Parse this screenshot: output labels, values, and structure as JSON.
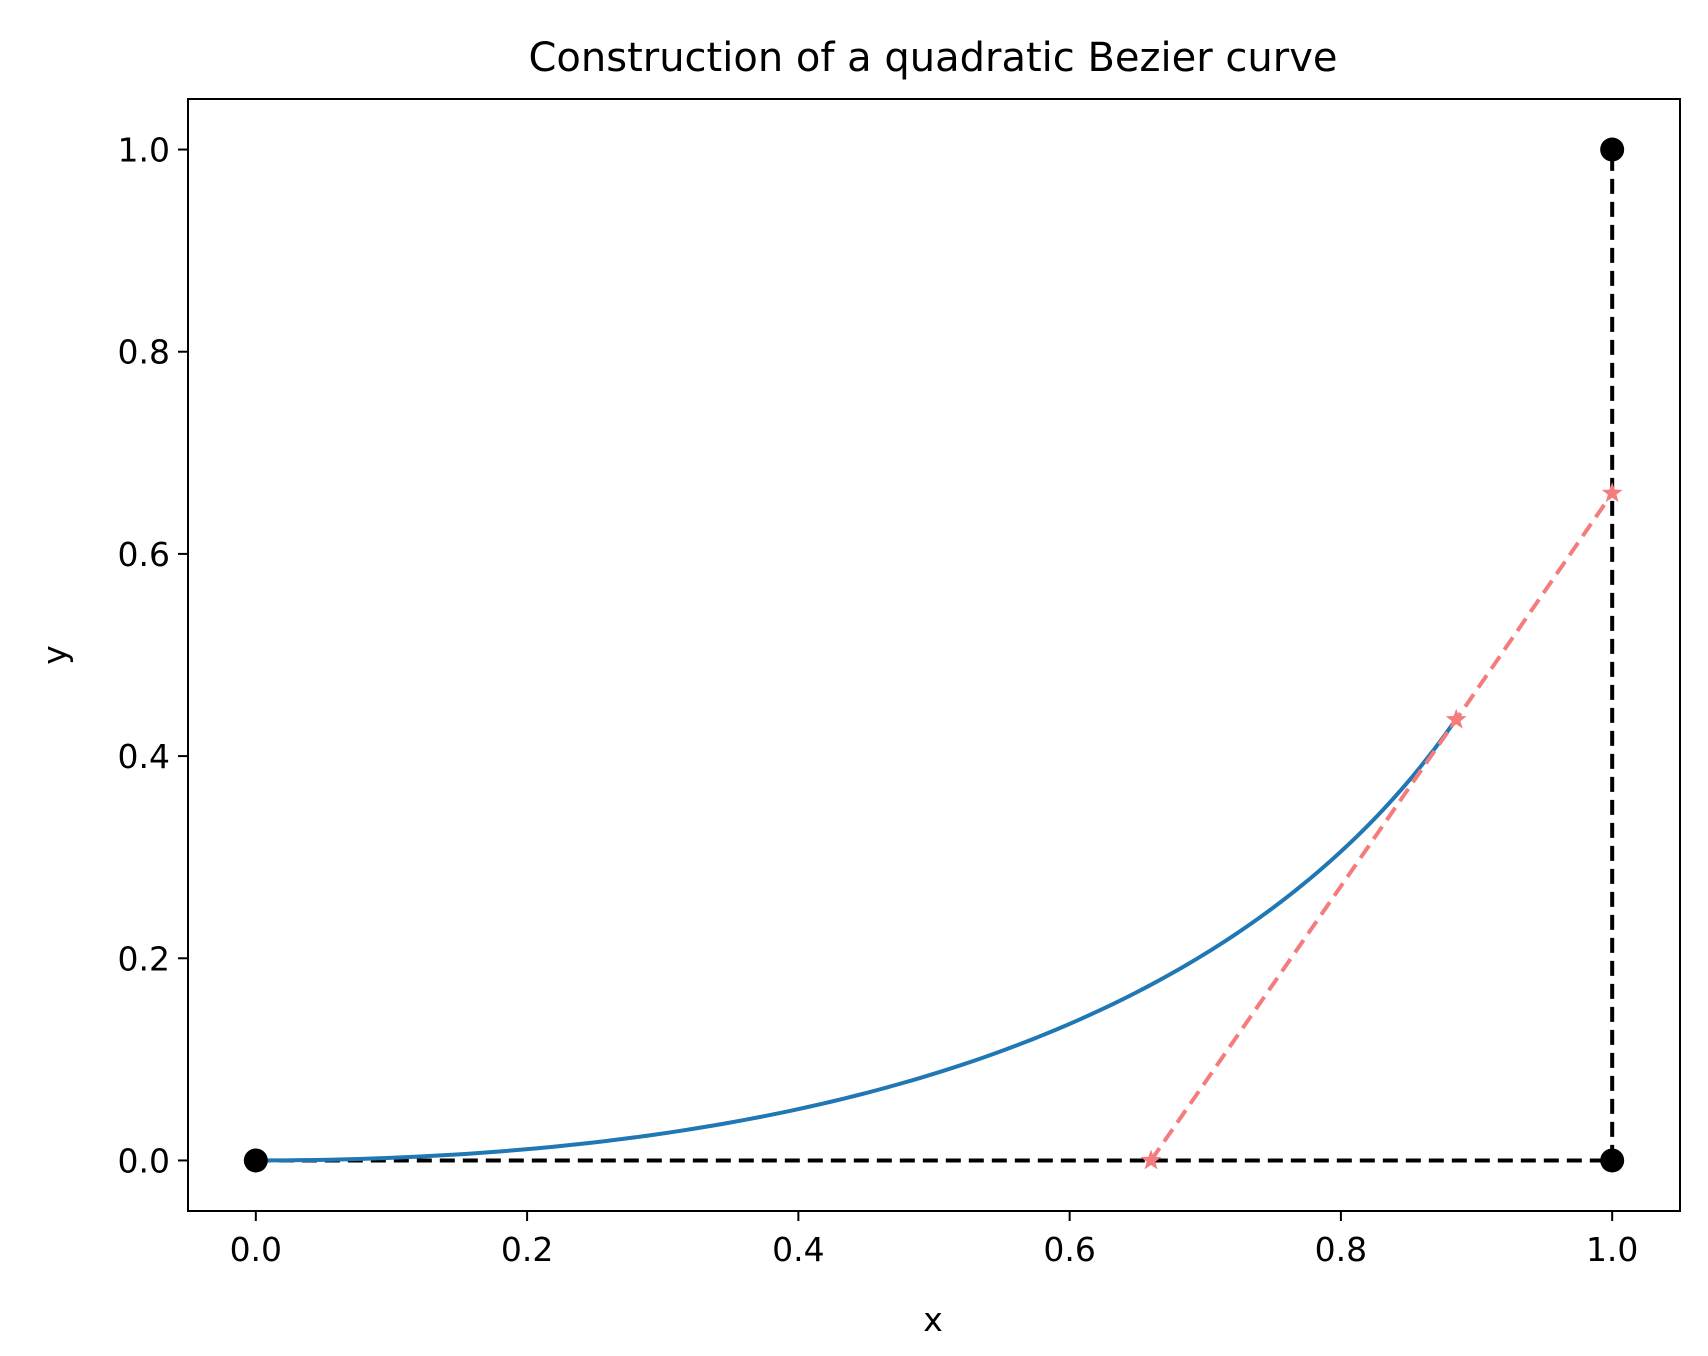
{
  "chart_data": {
    "type": "line",
    "title": "Construction of a quadratic Bezier curve",
    "xlabel": "x",
    "ylabel": "y",
    "xlim": [
      -0.05,
      1.05
    ],
    "ylim": [
      -0.05,
      1.05
    ],
    "xticks": [
      "0.0",
      "0.2",
      "0.4",
      "0.6",
      "0.8",
      "1.0"
    ],
    "yticks": [
      "0.0",
      "0.2",
      "0.4",
      "0.6",
      "0.8",
      "1.0"
    ],
    "grid": false,
    "control_points": {
      "x": [
        0.0,
        1.0,
        1.0
      ],
      "y": [
        0.0,
        0.0,
        1.0
      ],
      "color": "#000000",
      "style": "dashed",
      "marker": "circle"
    },
    "construction_line": {
      "x": [
        0.66,
        0.885,
        1.0
      ],
      "y": [
        0.0,
        0.436,
        0.66
      ],
      "color": "#f47c7c",
      "style": "dashed",
      "marker": "star"
    },
    "bezier_curve": {
      "t_end": 0.66,
      "color": "#1f77b4"
    }
  }
}
